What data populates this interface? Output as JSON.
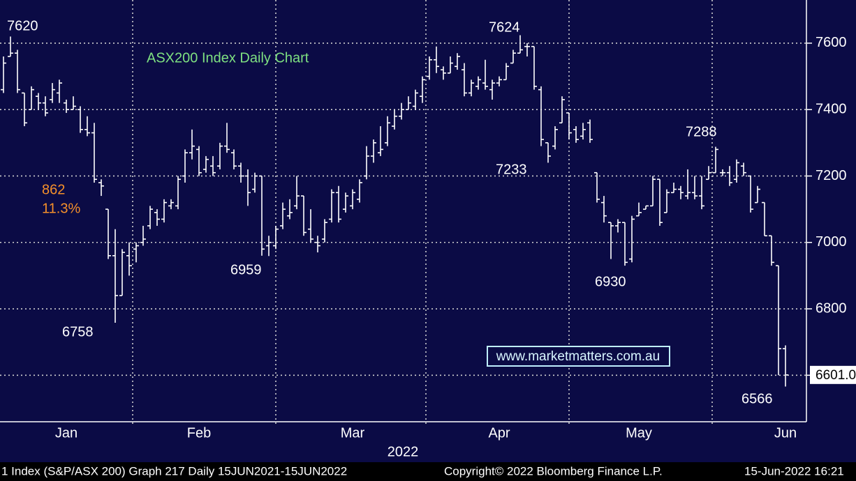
{
  "chart_data": {
    "type": "ohlc",
    "title": "ASX200 Index Daily Chart",
    "categories": [
      null,
      null,
      null,
      null,
      null,
      null,
      null,
      null,
      null,
      "Jan",
      null,
      null,
      null,
      null,
      null,
      null,
      null,
      null,
      null,
      null,
      null,
      null,
      null,
      null,
      null,
      null,
      null,
      null,
      "Feb",
      null,
      null,
      null,
      null,
      null,
      null,
      null,
      null,
      null,
      null,
      null,
      null,
      null,
      null,
      null,
      null,
      null,
      null,
      null,
      null,
      null,
      "Mar",
      null,
      null,
      null,
      null,
      null,
      null,
      null,
      null,
      null,
      null,
      null,
      null,
      null,
      null,
      null,
      null,
      null,
      null,
      null,
      null,
      "Apr",
      null,
      null,
      null,
      null,
      null,
      null,
      null,
      null,
      null,
      null,
      null,
      null,
      null,
      null,
      null,
      null,
      null,
      null,
      null,
      "May",
      null,
      null,
      null,
      null,
      null,
      null,
      null,
      null,
      null,
      null,
      null,
      null,
      null,
      null,
      null,
      null,
      null,
      null,
      null,
      null,
      "Jun"
    ],
    "x_label": "2022",
    "open": [
      7460,
      7560,
      7570,
      7450,
      7400,
      7440,
      7420,
      7430,
      7450,
      7420,
      7400,
      7400,
      7340,
      7330,
      7180,
      7100,
      6960,
      6840,
      6960,
      6980,
      7000,
      7050,
      7090,
      7070,
      7110,
      7110,
      7200,
      7270,
      7280,
      7220,
      7230,
      7230,
      7290,
      7270,
      7230,
      7200,
      7160,
      7200,
      6990,
      6990,
      7050,
      7080,
      7110,
      7140,
      7040,
      7000,
      7010,
      7070,
      7150,
      7100,
      7110,
      7130,
      7200,
      7260,
      7270,
      7300,
      7350,
      7380,
      7400,
      7410,
      7440,
      7500,
      7550,
      7520,
      7510,
      7530,
      7520,
      7450,
      7470,
      7480,
      7460,
      7480,
      7490,
      7540,
      7570,
      7590,
      7590,
      7460,
      7300,
      7290,
      7360,
      7390,
      7340,
      7320,
      7360,
      7210,
      7120,
      7060,
      7050,
      7060,
      6950,
      7080,
      7100,
      7110,
      7190,
      7090,
      7150,
      7160,
      7140,
      7150,
      7140,
      7190,
      7210,
      7210,
      7210,
      7190,
      7230,
      7200,
      7120,
      7120,
      7020,
      6930,
      6680
    ],
    "high": [
      7560,
      7620,
      7580,
      7450,
      7470,
      7450,
      7440,
      7480,
      7490,
      7430,
      7440,
      7410,
      7380,
      7360,
      7190,
      7100,
      7040,
      6980,
      7000,
      7000,
      7050,
      7110,
      7100,
      7130,
      7130,
      7200,
      7280,
      7340,
      7290,
      7260,
      7260,
      7300,
      7360,
      7280,
      7240,
      7220,
      7210,
      7200,
      7020,
      7050,
      7120,
      7130,
      7200,
      7140,
      7100,
      7020,
      7070,
      7160,
      7170,
      7150,
      7160,
      7190,
      7290,
      7310,
      7350,
      7380,
      7400,
      7420,
      7440,
      7460,
      7500,
      7560,
      7590,
      7530,
      7560,
      7570,
      7540,
      7490,
      7500,
      7550,
      7490,
      7500,
      7540,
      7580,
      7624,
      7600,
      7590,
      7470,
      7300,
      7350,
      7440,
      7390,
      7350,
      7360,
      7370,
      7210,
      7140,
      7060,
      7070,
      7060,
      7080,
      7120,
      7110,
      7200,
      7190,
      7160,
      7180,
      7170,
      7220,
      7200,
      7200,
      7230,
      7288,
      7220,
      7230,
      7250,
      7240,
      7200,
      7170,
      7120,
      7020,
      6930,
      6690
    ],
    "low": [
      7450,
      7560,
      7450,
      7350,
      7400,
      7400,
      7380,
      7420,
      7420,
      7390,
      7400,
      7330,
      7320,
      7180,
      7140,
      6950,
      6758,
      6840,
      6900,
      6940,
      6990,
      7040,
      7050,
      7060,
      7100,
      7100,
      7180,
      7250,
      7200,
      7210,
      7200,
      7220,
      7270,
      7220,
      7180,
      7110,
      7150,
      6960,
      6959,
      6980,
      7040,
      7070,
      7100,
      7020,
      7000,
      6970,
      7000,
      7060,
      7060,
      7090,
      7100,
      7120,
      7190,
      7240,
      7260,
      7290,
      7340,
      7370,
      7400,
      7400,
      7420,
      7490,
      7510,
      7490,
      7510,
      7520,
      7440,
      7440,
      7460,
      7460,
      7430,
      7470,
      7490,
      7540,
      7570,
      7560,
      7460,
      7290,
      7240,
      7280,
      7360,
      7310,
      7300,
      7310,
      7300,
      7120,
      7060,
      6950,
      7030,
      6930,
      6940,
      7080,
      7100,
      7110,
      7050,
      7090,
      7150,
      7130,
      7130,
      7130,
      7100,
      7190,
      7210,
      7200,
      7170,
      7180,
      7200,
      7090,
      7120,
      7020,
      6930,
      6600,
      6566
    ],
    "close": [
      7540,
      7570,
      7460,
      7360,
      7460,
      7420,
      7390,
      7460,
      7480,
      7400,
      7410,
      7340,
      7330,
      7190,
      7170,
      6960,
      6840,
      6970,
      6930,
      6990,
      7010,
      7100,
      7070,
      7120,
      7120,
      7190,
      7270,
      7290,
      7210,
      7250,
      7210,
      7290,
      7280,
      7230,
      7200,
      7150,
      7200,
      6980,
      7000,
      7040,
      7100,
      7090,
      7140,
      7030,
      7010,
      6990,
      7060,
      7150,
      7070,
      7140,
      7150,
      7180,
      7260,
      7300,
      7280,
      7360,
      7380,
      7400,
      7420,
      7450,
      7490,
      7550,
      7530,
      7510,
      7540,
      7560,
      7450,
      7480,
      7490,
      7470,
      7480,
      7490,
      7530,
      7570,
      7580,
      7590,
      7470,
      7310,
      7260,
      7340,
      7430,
      7330,
      7310,
      7340,
      7310,
      7130,
      7080,
      7050,
      7060,
      6940,
      7070,
      7090,
      7110,
      7190,
      7060,
      7150,
      7160,
      7150,
      7150,
      7140,
      7110,
      7210,
      7280,
      7210,
      7180,
      7240,
      7210,
      7100,
      7160,
      7020,
      6940,
      6680,
      6601
    ],
    "last_label": "6601.0",
    "color": "#ffffff",
    "ylim": [
      6460,
      7730
    ],
    "yticks": [
      6600,
      6800,
      7000,
      7200,
      7400,
      7600
    ],
    "grid": true,
    "annotations": [
      "7620",
      "7624",
      "7233",
      "7288",
      "6758",
      "6959",
      "6930",
      "6566",
      "862",
      "11.3%"
    ],
    "watermark": "www.marketmatters.com.au"
  },
  "footer": [
    "1 Index (S&P/ASX 200) Graph 217  Daily 15JUN2021-15JUN2022",
    "Copyright© 2022 Bloomberg Finance L.P.",
    "15-Jun-2022 16:21"
  ]
}
